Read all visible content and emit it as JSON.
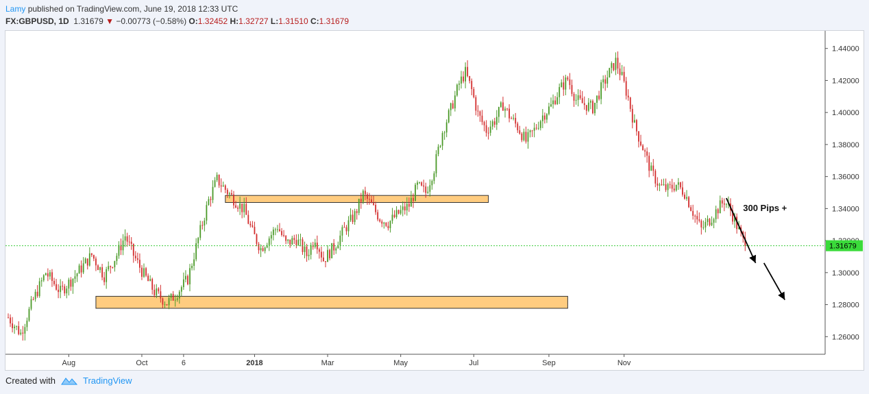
{
  "header": {
    "author": "Lamy",
    "published_text": "published on TradingView.com, June 19, 2018 12:33 UTC",
    "symbol": "FX:GBPUSD, 1D",
    "last": "1.31679",
    "change_arrow": "▼",
    "change": "−0.00773 (−0.58%)",
    "o_label": "O:",
    "o_value": "1.32452",
    "h_label": "H:",
    "h_value": "1.32727",
    "l_label": "L:",
    "l_value": "1.31510",
    "c_label": "C:",
    "c_value": "1.31679"
  },
  "footer": {
    "created_with": "Created with",
    "brand": "TradingView"
  },
  "colors": {
    "up": "#4c9a2a",
    "down": "#d32f2f",
    "zone_fill": "#ffcc80",
    "zone_stroke": "#333333",
    "price_line": "#3acb3a",
    "price_label_bg": "#3adb3a"
  },
  "chart_data": {
    "type": "candlestick",
    "symbol": "FX:GBPUSD",
    "timeframe": "1D",
    "x_tick_labels": [
      "Aug",
      "Oct",
      "6",
      "2018",
      "Mar",
      "May",
      "Jul",
      "Sep",
      "Nov"
    ],
    "y_tick_labels": [
      "1.44000",
      "1.42000",
      "1.40000",
      "1.38000",
      "1.36000",
      "1.34000",
      "1.32000",
      "1.30000",
      "1.28000",
      "1.26000"
    ],
    "y_ticks": [
      1.44,
      1.42,
      1.4,
      1.38,
      1.36,
      1.34,
      1.32,
      1.3,
      1.28,
      1.26
    ],
    "ylim": [
      1.249,
      1.451
    ],
    "current_price": 1.31679,
    "current_price_label": "1.31679",
    "annotation_text": "300 Pips +",
    "zones": [
      {
        "name": "resistance-zone",
        "y_low": 1.3438,
        "y_high": 1.3482
      },
      {
        "name": "target-zone",
        "y_low": 1.2777,
        "y_high": 1.2852
      }
    ],
    "price_path": [
      [
        0,
        1.272
      ],
      [
        6,
        1.262
      ],
      [
        12,
        1.283
      ],
      [
        18,
        1.3
      ],
      [
        25,
        1.288
      ],
      [
        32,
        1.298
      ],
      [
        40,
        1.311
      ],
      [
        46,
        1.298
      ],
      [
        52,
        1.311
      ],
      [
        56,
        1.323
      ],
      [
        60,
        1.311
      ],
      [
        64,
        1.301
      ],
      [
        70,
        1.288
      ],
      [
        76,
        1.281
      ],
      [
        80,
        1.286
      ],
      [
        86,
        1.296
      ],
      [
        92,
        1.326
      ],
      [
        96,
        1.345
      ],
      [
        100,
        1.358
      ],
      [
        104,
        1.352
      ],
      [
        108,
        1.346
      ],
      [
        113,
        1.339
      ],
      [
        117,
        1.325
      ],
      [
        121,
        1.315
      ],
      [
        125,
        1.322
      ],
      [
        129,
        1.329
      ],
      [
        133,
        1.318
      ],
      [
        138,
        1.321
      ],
      [
        143,
        1.311
      ],
      [
        147,
        1.322
      ],
      [
        151,
        1.308
      ],
      [
        156,
        1.316
      ],
      [
        161,
        1.327
      ],
      [
        166,
        1.336
      ],
      [
        170,
        1.349
      ],
      [
        174,
        1.342
      ],
      [
        178,
        1.334
      ],
      [
        182,
        1.331
      ],
      [
        187,
        1.337
      ],
      [
        192,
        1.342
      ],
      [
        196,
        1.354
      ],
      [
        200,
        1.35
      ],
      [
        204,
        1.365
      ],
      [
        208,
        1.388
      ],
      [
        212,
        1.402
      ],
      [
        216,
        1.418
      ],
      [
        219,
        1.425
      ],
      [
        222,
        1.414
      ],
      [
        225,
        1.399
      ],
      [
        229,
        1.389
      ],
      [
        233,
        1.395
      ],
      [
        237,
        1.405
      ],
      [
        240,
        1.398
      ],
      [
        244,
        1.391
      ],
      [
        248,
        1.382
      ],
      [
        252,
        1.389
      ],
      [
        256,
        1.398
      ],
      [
        260,
        1.404
      ],
      [
        264,
        1.414
      ],
      [
        268,
        1.421
      ],
      [
        272,
        1.408
      ],
      [
        276,
        1.405
      ],
      [
        280,
        1.403
      ],
      [
        284,
        1.415
      ],
      [
        288,
        1.425
      ],
      [
        291,
        1.432
      ],
      [
        294,
        1.422
      ],
      [
        297,
        1.409
      ],
      [
        300,
        1.392
      ],
      [
        304,
        1.378
      ],
      [
        308,
        1.363
      ],
      [
        312,
        1.354
      ],
      [
        316,
        1.352
      ],
      [
        320,
        1.355
      ],
      [
        324,
        1.35
      ],
      [
        328,
        1.338
      ],
      [
        332,
        1.327
      ],
      [
        336,
        1.333
      ],
      [
        340,
        1.34
      ],
      [
        343,
        1.345
      ],
      [
        346,
        1.339
      ],
      [
        350,
        1.326
      ],
      [
        353,
        1.317
      ]
    ],
    "arrows": [
      {
        "from": [
          344,
          1.3465
        ],
        "to": [
          358,
          1.306
        ]
      },
      {
        "from": [
          362,
          1.306
        ],
        "to": [
          372,
          1.283
        ]
      }
    ]
  }
}
